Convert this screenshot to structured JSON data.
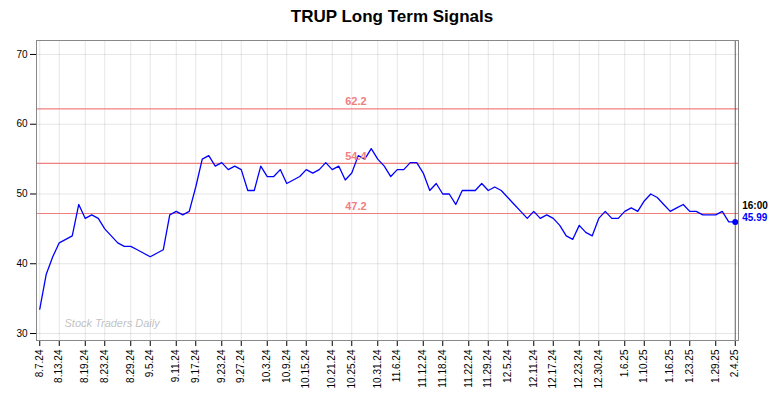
{
  "chart_data": {
    "type": "line",
    "title": "TRUP Long Term Signals",
    "categories": [
      "8.7.24",
      null,
      null,
      "8.13.24",
      null,
      null,
      null,
      "8.19.24",
      null,
      null,
      "8.23.24",
      null,
      null,
      null,
      "8.29.24",
      null,
      null,
      "9.5.24",
      null,
      null,
      null,
      "9.11.24",
      null,
      null,
      "9.17.24",
      null,
      null,
      null,
      "9.23.24",
      null,
      null,
      "9.27.24",
      null,
      null,
      null,
      "10.3.24",
      null,
      null,
      "10.9.24",
      null,
      null,
      "10.15.24",
      null,
      null,
      null,
      "10.21.24",
      null,
      null,
      "10.25.24",
      null,
      null,
      null,
      "10.31.24",
      null,
      null,
      "11.6.24",
      null,
      null,
      null,
      "11.12.24",
      null,
      null,
      "11.18.24",
      null,
      null,
      null,
      "11.22.24",
      null,
      null,
      "11.29.24",
      null,
      null,
      "12.5.24",
      null,
      null,
      null,
      "12.11.24",
      null,
      null,
      "12.17.24",
      null,
      null,
      null,
      "12.23.24",
      null,
      null,
      "12.30.24",
      null,
      null,
      null,
      "1.6.25",
      null,
      null,
      "1.10.25",
      null,
      null,
      null,
      "1.16.25",
      null,
      null,
      "1.23.25",
      null,
      null,
      null,
      "1.29.25",
      null,
      null,
      "2.4.25"
    ],
    "values": [
      33.5,
      38.5,
      41.0,
      43.0,
      43.5,
      44.0,
      48.5,
      46.5,
      47.0,
      46.5,
      45.0,
      44.0,
      43.0,
      42.5,
      42.5,
      42.0,
      41.5,
      41.0,
      41.5,
      42.0,
      47.0,
      47.5,
      47.0,
      47.5,
      51.0,
      55.0,
      55.5,
      54.0,
      54.5,
      53.5,
      54.0,
      53.5,
      50.5,
      50.5,
      54.0,
      52.5,
      52.5,
      53.5,
      51.5,
      52.0,
      52.5,
      53.5,
      53.0,
      53.5,
      54.5,
      53.5,
      54.0,
      52.0,
      53.0,
      55.5,
      55.0,
      56.5,
      55.0,
      54.0,
      52.5,
      53.5,
      53.5,
      54.5,
      54.5,
      53.0,
      50.5,
      51.5,
      50.0,
      50.0,
      48.5,
      50.5,
      50.5,
      50.5,
      51.5,
      50.5,
      51.0,
      50.5,
      49.5,
      48.5,
      47.5,
      46.5,
      47.5,
      46.5,
      47.0,
      46.5,
      45.5,
      44.0,
      43.5,
      45.5,
      44.5,
      44.0,
      46.5,
      47.5,
      46.5,
      46.5,
      47.5,
      48.0,
      47.5,
      49.0,
      50.0,
      49.5,
      48.5,
      47.5,
      48.0,
      48.5,
      47.5,
      47.5,
      47.0,
      47.0,
      47.0,
      47.5,
      46.0,
      45.99
    ],
    "color": "blue",
    "ylim": [
      29,
      72
    ],
    "yticks": [
      30,
      40,
      50,
      60,
      70
    ],
    "grid": true,
    "hlines": [
      {
        "value": 62.2,
        "color": "#f08080"
      },
      {
        "value": 54.4,
        "color": "#f08080"
      },
      {
        "value": 47.2,
        "color": "#f08080"
      }
    ],
    "watermark": "Stock Traders Daily",
    "end_label": "16:00"
  }
}
